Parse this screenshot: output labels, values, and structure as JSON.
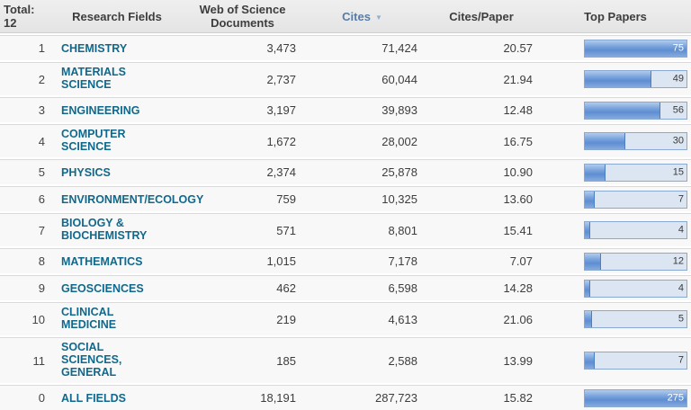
{
  "header": {
    "total_label": "Total:",
    "total_count": "12",
    "columns": {
      "research_fields": "Research Fields",
      "documents": "Web of Science Documents",
      "cites": "Cites",
      "cites_per_paper": "Cites/Paper",
      "top_papers": "Top Papers"
    },
    "sort": {
      "column": "Cites",
      "direction": "desc",
      "icon": "triangle-down"
    }
  },
  "colors": {
    "field_link": "#10698c",
    "sorted_header": "#567ca8",
    "bar_track": "#dce5f2",
    "bar_border": "#8aa9d2",
    "bar_fill": "#5e8ed2"
  },
  "top_papers_scale_max": 75,
  "rows": [
    {
      "rank": "1",
      "field": "CHEMISTRY",
      "documents": "3,473",
      "cites": "71,424",
      "cites_per_paper": "20.57",
      "top_papers": 75
    },
    {
      "rank": "2",
      "field": "MATERIALS SCIENCE",
      "documents": "2,737",
      "cites": "60,044",
      "cites_per_paper": "21.94",
      "top_papers": 49
    },
    {
      "rank": "3",
      "field": "ENGINEERING",
      "documents": "3,197",
      "cites": "39,893",
      "cites_per_paper": "12.48",
      "top_papers": 56
    },
    {
      "rank": "4",
      "field": "COMPUTER SCIENCE",
      "documents": "1,672",
      "cites": "28,002",
      "cites_per_paper": "16.75",
      "top_papers": 30
    },
    {
      "rank": "5",
      "field": "PHYSICS",
      "documents": "2,374",
      "cites": "25,878",
      "cites_per_paper": "10.90",
      "top_papers": 15
    },
    {
      "rank": "6",
      "field": "ENVIRONMENT/ECOLOGY",
      "documents": "759",
      "cites": "10,325",
      "cites_per_paper": "13.60",
      "top_papers": 7
    },
    {
      "rank": "7",
      "field": "BIOLOGY & BIOCHEMISTRY",
      "documents": "571",
      "cites": "8,801",
      "cites_per_paper": "15.41",
      "top_papers": 4
    },
    {
      "rank": "8",
      "field": "MATHEMATICS",
      "documents": "1,015",
      "cites": "7,178",
      "cites_per_paper": "7.07",
      "top_papers": 12
    },
    {
      "rank": "9",
      "field": "GEOSCIENCES",
      "documents": "462",
      "cites": "6,598",
      "cites_per_paper": "14.28",
      "top_papers": 4
    },
    {
      "rank": "10",
      "field": "CLINICAL MEDICINE",
      "documents": "219",
      "cites": "4,613",
      "cites_per_paper": "21.06",
      "top_papers": 5
    },
    {
      "rank": "11",
      "field": "SOCIAL SCIENCES, GENERAL",
      "documents": "185",
      "cites": "2,588",
      "cites_per_paper": "13.99",
      "top_papers": 7
    },
    {
      "rank": "0",
      "field": "ALL FIELDS",
      "documents": "18,191",
      "cites": "287,723",
      "cites_per_paper": "15.82",
      "top_papers": 275
    }
  ]
}
